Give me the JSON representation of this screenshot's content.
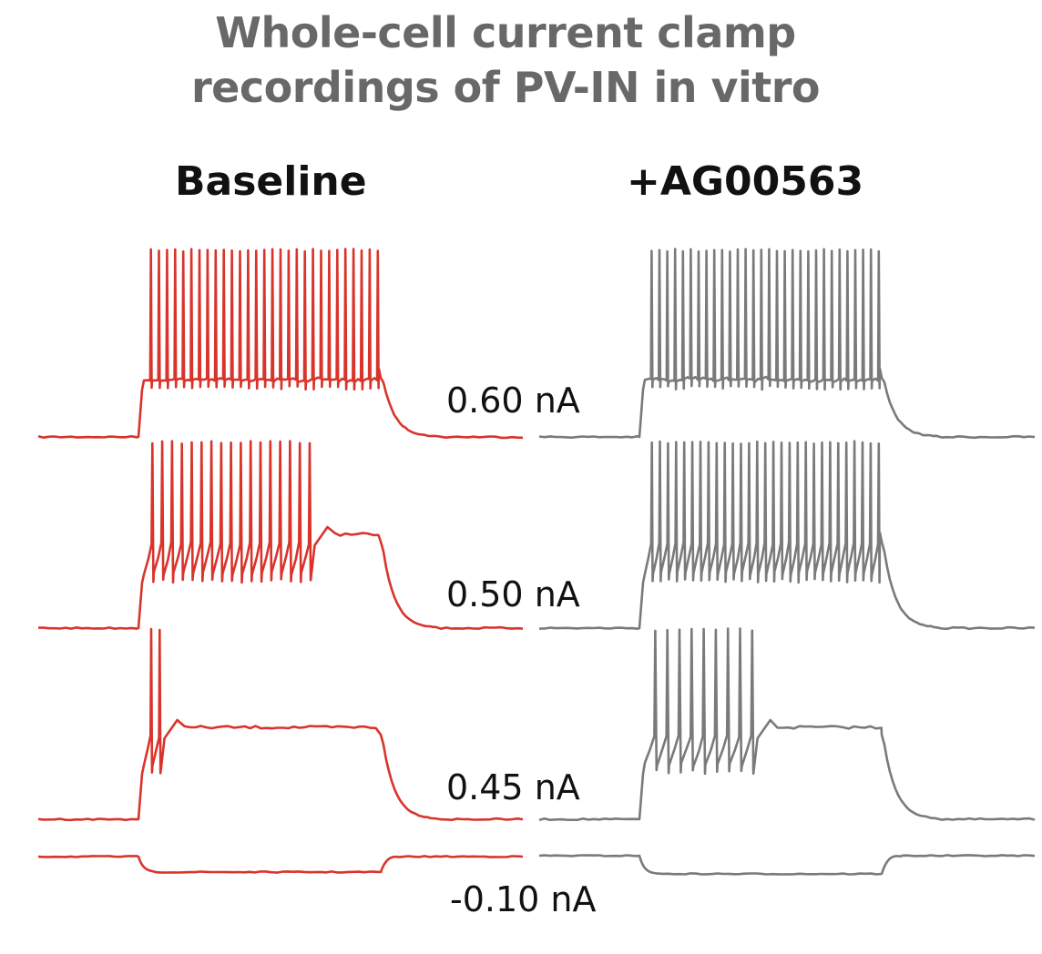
{
  "figure": {
    "title_line1": "Whole-cell current clamp",
    "title_line2": "recordings of PV-IN in vitro",
    "conditions": [
      {
        "label": "Baseline",
        "color": "#d9342b"
      },
      {
        "label": "+AG00563",
        "color": "#7a7a7a"
      }
    ],
    "sweeps": [
      {
        "current": "0.60 nA",
        "baseline_spikes": 29,
        "drug_spikes": 30,
        "baseline_block_fraction": 0.0,
        "drug_block_fraction": 0.0
      },
      {
        "current": "0.50 nA",
        "baseline_spikes": 17,
        "drug_spikes": 29,
        "baseline_block_fraction": 0.28,
        "drug_block_fraction": 0.0
      },
      {
        "current": "0.45 nA",
        "baseline_spikes": 2,
        "drug_spikes": 9,
        "baseline_block_fraction": 0.9,
        "drug_block_fraction": 0.52
      },
      {
        "current": "-0.10 nA",
        "baseline_spikes": 0,
        "drug_spikes": 0,
        "hyperpolarizing": true
      }
    ]
  }
}
